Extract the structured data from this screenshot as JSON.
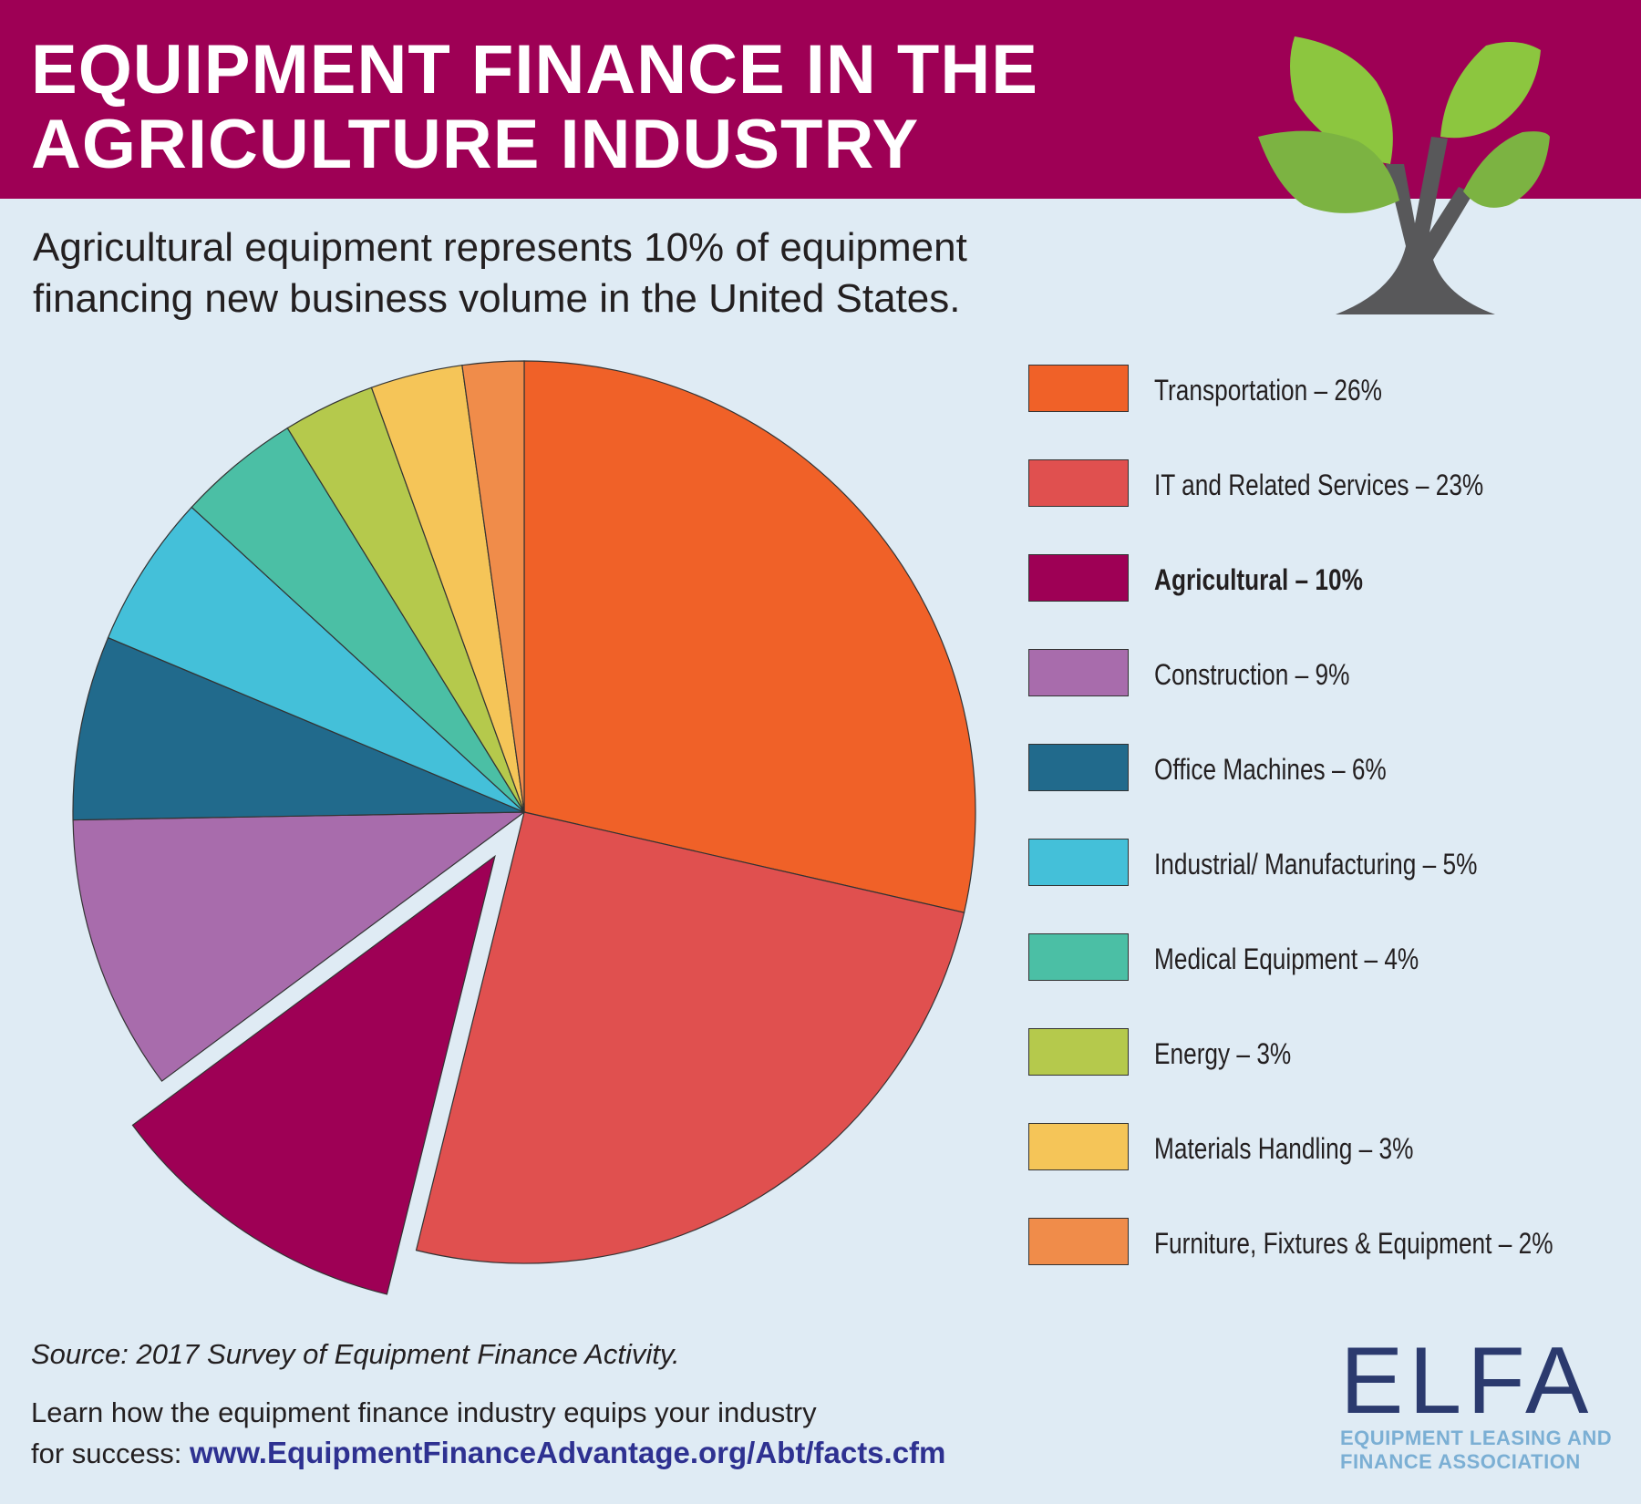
{
  "header": {
    "title_line1": "EQUIPMENT FINANCE IN THE",
    "title_line2": "AGRICULTURE INDUSTRY"
  },
  "subtitle": {
    "line1": "Agricultural equipment represents 10% of equipment",
    "line2": "financing new business volume in the United States."
  },
  "chart_data": {
    "type": "pie",
    "title": "",
    "exploded": "Agricultural",
    "slices": [
      {
        "label": "Transportation",
        "value": 26,
        "display": "Transportation – 26%",
        "color": "#f06128",
        "bold": false
      },
      {
        "label": "IT and Related Services",
        "value": 23,
        "display": "IT and Related Services – 23%",
        "color": "#e0504f",
        "bold": false
      },
      {
        "label": "Agricultural",
        "value": 10,
        "display": "Agricultural – 10%",
        "color": "#9e0055",
        "bold": true
      },
      {
        "label": "Construction",
        "value": 9,
        "display": "Construction – 9%",
        "color": "#a86cac",
        "bold": false
      },
      {
        "label": "Office Machines",
        "value": 6,
        "display": "Office Machines – 6%",
        "color": "#216a8c",
        "bold": false
      },
      {
        "label": "Industrial/Manufacturing",
        "value": 5,
        "display": "Industrial/ Manufacturing – 5%",
        "color": "#44c0d9",
        "bold": false
      },
      {
        "label": "Medical Equipment",
        "value": 4,
        "display": "Medical Equipment – 4%",
        "color": "#4bbfa5",
        "bold": false
      },
      {
        "label": "Energy",
        "value": 3,
        "display": "Energy – 3%",
        "color": "#b5c94c",
        "bold": false
      },
      {
        "label": "Materials Handling",
        "value": 3,
        "display": "Materials Handling – 3%",
        "color": "#f5c558",
        "bold": false
      },
      {
        "label": "Furniture, Fixtures & Equipment",
        "value": 2,
        "display": "Furniture, Fixtures & Equipment – 2%",
        "color": "#f08c4a",
        "bold": false
      }
    ],
    "legend_position": "right"
  },
  "footer": {
    "source": "Source: 2017 Survey of Equipment Finance Activity.",
    "learn_line1": "Learn how the equipment finance industry equips your industry",
    "learn_line2_prefix": "for success: ",
    "url": "www.EquipmentFinanceAdvantage.org/Abt/facts.cfm"
  },
  "logo": {
    "wordmark": "ELFA",
    "tagline_line1": "EQUIPMENT LEASING AND",
    "tagline_line2": "FINANCE ASSOCIATION"
  },
  "colors": {
    "banner": "#9e0055",
    "background": "#dfebf4",
    "url": "#2e3191",
    "leaf": "#8cc63f",
    "trunk": "#58585a"
  },
  "icons": {
    "tree": "tree-icon"
  }
}
